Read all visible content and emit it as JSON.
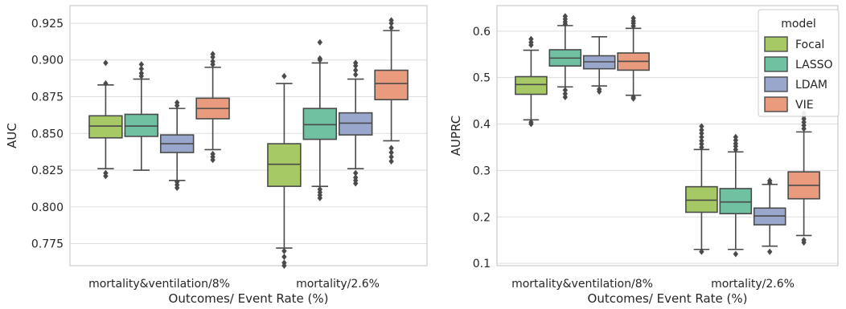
{
  "palette": {
    "Focal": "#a6c965",
    "LASSO": "#6fc1a2",
    "LDAM": "#9aa7cd",
    "VIE": "#ea9a7d"
  },
  "chart_data": [
    {
      "type": "box",
      "ylabel": "AUC",
      "xlabel": "Outcomes/ Event Rate (%)",
      "ylim": [
        0.76,
        0.937
      ],
      "yticks": [
        0.775,
        0.8,
        0.825,
        0.85,
        0.875,
        0.9,
        0.925
      ],
      "ytick_labels": [
        "0.775",
        "0.800",
        "0.825",
        "0.850",
        "0.875",
        "0.900",
        "0.925"
      ],
      "grid": true,
      "categories": [
        "mortality&ventilation/8%",
        "mortality/2.6%"
      ],
      "series": [
        {
          "name": "Focal",
          "boxes": [
            {
              "whislo": 0.826,
              "q1": 0.847,
              "med": 0.855,
              "q3": 0.862,
              "whishi": 0.883,
              "fliers": [
                0.821,
                0.823,
                0.884,
                0.898
              ]
            },
            {
              "whislo": 0.772,
              "q1": 0.814,
              "med": 0.829,
              "q3": 0.843,
              "whishi": 0.884,
              "fliers": [
                0.76,
                0.762,
                0.766,
                0.77,
                0.889
              ]
            }
          ]
        },
        {
          "name": "LASSO",
          "boxes": [
            {
              "whislo": 0.825,
              "q1": 0.848,
              "med": 0.855,
              "q3": 0.863,
              "whishi": 0.887,
              "fliers": [
                0.889,
                0.891,
                0.894,
                0.897
              ]
            },
            {
              "whislo": 0.814,
              "q1": 0.846,
              "med": 0.856,
              "q3": 0.867,
              "whishi": 0.898,
              "fliers": [
                0.806,
                0.808,
                0.81,
                0.812,
                0.9,
                0.901,
                0.912
              ]
            }
          ]
        },
        {
          "name": "LDAM",
          "boxes": [
            {
              "whislo": 0.818,
              "q1": 0.837,
              "med": 0.843,
              "q3": 0.849,
              "whishi": 0.867,
              "fliers": [
                0.813,
                0.815,
                0.817,
                0.869,
                0.871
              ]
            },
            {
              "whislo": 0.826,
              "q1": 0.849,
              "med": 0.857,
              "q3": 0.864,
              "whishi": 0.887,
              "fliers": [
                0.816,
                0.818,
                0.82,
                0.823,
                0.89,
                0.893,
                0.896,
                0.898
              ]
            }
          ]
        },
        {
          "name": "VIE",
          "boxes": [
            {
              "whislo": 0.839,
              "q1": 0.86,
              "med": 0.867,
              "q3": 0.874,
              "whishi": 0.895,
              "fliers": [
                0.832,
                0.834,
                0.836,
                0.897,
                0.899,
                0.902,
                0.904
              ]
            },
            {
              "whislo": 0.845,
              "q1": 0.873,
              "med": 0.884,
              "q3": 0.893,
              "whishi": 0.92,
              "fliers": [
                0.831,
                0.834,
                0.837,
                0.84,
                0.922,
                0.925,
                0.927
              ]
            }
          ]
        }
      ]
    },
    {
      "type": "box",
      "ylabel": "AUPRC",
      "xlabel": "Outcomes/ Event Rate (%)",
      "ylim": [
        0.095,
        0.655
      ],
      "yticks": [
        0.1,
        0.2,
        0.3,
        0.4,
        0.5,
        0.6
      ],
      "ytick_labels": [
        "0.1",
        "0.2",
        "0.3",
        "0.4",
        "0.5",
        "0.6"
      ],
      "grid": true,
      "legend": {
        "title": "model",
        "placement": "top-right",
        "entries": [
          "Focal",
          "LASSO",
          "LDAM",
          "VIE"
        ]
      },
      "categories": [
        "mortality&ventilation/8%",
        "mortality/2.6%"
      ],
      "series": [
        {
          "name": "Focal",
          "boxes": [
            {
              "whislo": 0.409,
              "q1": 0.464,
              "med": 0.485,
              "q3": 0.502,
              "whishi": 0.559,
              "fliers": [
                0.4,
                0.404,
                0.57,
                0.576,
                0.583
              ]
            },
            {
              "whislo": 0.13,
              "q1": 0.21,
              "med": 0.236,
              "q3": 0.265,
              "whishi": 0.345,
              "fliers": [
                0.125,
                0.35,
                0.357,
                0.364,
                0.372,
                0.38,
                0.387,
                0.395
              ]
            }
          ]
        },
        {
          "name": "LASSO",
          "boxes": [
            {
              "whislo": 0.48,
              "q1": 0.525,
              "med": 0.542,
              "q3": 0.56,
              "whishi": 0.612,
              "fliers": [
                0.458,
                0.465,
                0.473,
                0.615,
                0.62,
                0.626,
                0.632
              ]
            },
            {
              "whislo": 0.13,
              "q1": 0.207,
              "med": 0.232,
              "q3": 0.261,
              "whishi": 0.34,
              "fliers": [
                0.12,
                0.345,
                0.352,
                0.358,
                0.365,
                0.372
              ]
            }
          ]
        },
        {
          "name": "LDAM",
          "boxes": [
            {
              "whislo": 0.482,
              "q1": 0.519,
              "med": 0.534,
              "q3": 0.547,
              "whishi": 0.588,
              "fliers": [
                0.47,
                0.475
              ]
            },
            {
              "whislo": 0.137,
              "q1": 0.183,
              "med": 0.202,
              "q3": 0.219,
              "whishi": 0.27,
              "fliers": [
                0.125,
                0.273,
                0.278
              ]
            }
          ]
        },
        {
          "name": "VIE",
          "boxes": [
            {
              "whislo": 0.462,
              "q1": 0.516,
              "med": 0.535,
              "q3": 0.553,
              "whishi": 0.606,
              "fliers": [
                0.455,
                0.458,
                0.611,
                0.617,
                0.622,
                0.628
              ]
            },
            {
              "whislo": 0.16,
              "q1": 0.239,
              "med": 0.268,
              "q3": 0.297,
              "whishi": 0.383,
              "fliers": [
                0.145,
                0.15,
                0.39,
                0.397,
                0.404,
                0.411,
                0.417,
                0.423
              ]
            }
          ]
        }
      ]
    }
  ]
}
